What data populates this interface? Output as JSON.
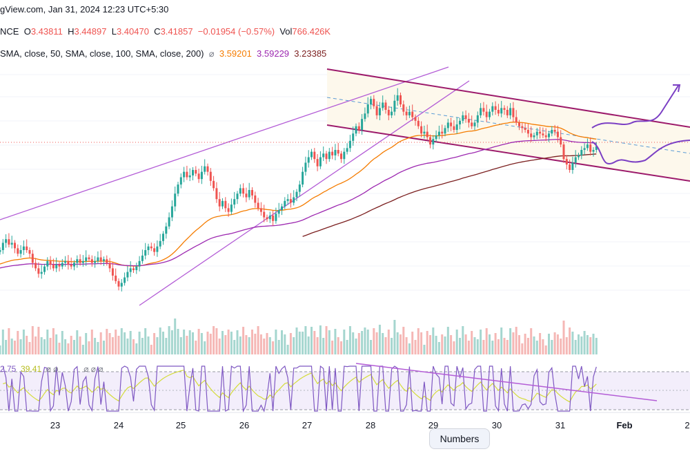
{
  "header": {
    "source": "gView.com, Jan 31, 2024 12:23 UTC+5:30",
    "exchange": "NCE",
    "o_label": "O",
    "o": "3.43811",
    "h_label": "H",
    "h": "3.44897",
    "l_label": "L",
    "l": "3.40470",
    "c_label": "C",
    "c": "3.41857",
    "change": "−0.01954 (−0.57%)",
    "vol_label": "Vol",
    "vol": "766.426K",
    "sma_text": "SMA, close, 50, SMA, close, 100, SMA, close, 200)",
    "eye_icon": "eye-off-icon",
    "sma50": "3.59201",
    "sma100": "3.59229",
    "sma200": "3.23385"
  },
  "rsi_header": {
    "rsi": "2.75",
    "rsi_ma": "39.41"
  },
  "tooltip": {
    "label": "Numbers"
  },
  "colors": {
    "up": "#26a69a",
    "down": "#ef5350",
    "sma50": "#f57c00",
    "sma100": "#9c27b0",
    "sma200": "#7b1f1f",
    "channel": "#9c1a6b",
    "trend": "#b35cd6",
    "rsi": "#7e57c2",
    "rsi_ma": "#d4dc3a",
    "projection": "#7b3fc4"
  },
  "chart_data": {
    "type": "candlestick",
    "x_ticks": [
      "23",
      "24",
      "25",
      "26",
      "27",
      "28",
      "29",
      "30",
      "31",
      "Feb",
      "2"
    ],
    "close": [
      3.22,
      3.26,
      3.28,
      3.25,
      3.26,
      3.23,
      3.2,
      3.22,
      3.24,
      3.22,
      3.2,
      3.15,
      3.12,
      3.09,
      3.1,
      3.13,
      3.16,
      3.14,
      3.12,
      3.14,
      3.13,
      3.15,
      3.16,
      3.14,
      3.13,
      3.15,
      3.17,
      3.15,
      3.16,
      3.18,
      3.17,
      3.15,
      3.16,
      3.18,
      3.16,
      3.17,
      3.15,
      3.12,
      3.08,
      3.05,
      3.02,
      3.04,
      3.07,
      3.1,
      3.12,
      3.11,
      3.13,
      3.16,
      3.19,
      3.22,
      3.24,
      3.23,
      3.21,
      3.24,
      3.27,
      3.31,
      3.35,
      3.4,
      3.46,
      3.53,
      3.58,
      3.62,
      3.65,
      3.62,
      3.63,
      3.66,
      3.64,
      3.61,
      3.65,
      3.68,
      3.65,
      3.6,
      3.56,
      3.5,
      3.46,
      3.49,
      3.45,
      3.43,
      3.47,
      3.5,
      3.53,
      3.56,
      3.53,
      3.51,
      3.55,
      3.52,
      3.48,
      3.45,
      3.43,
      3.4,
      3.39,
      3.41,
      3.38,
      3.42,
      3.44,
      3.46,
      3.49,
      3.5,
      3.48,
      3.51,
      3.54,
      3.58,
      3.65,
      3.7,
      3.73,
      3.76,
      3.72,
      3.68,
      3.73,
      3.75,
      3.72,
      3.76,
      3.74,
      3.77,
      3.75,
      3.72,
      3.76,
      3.78,
      3.82,
      3.86,
      3.9,
      3.88,
      3.94,
      3.97,
      4.02,
      4.05,
      4.01,
      3.96,
      4.0,
      4.03,
      3.99,
      3.96,
      3.98,
      4.04,
      4.07,
      4.02,
      3.98,
      3.96,
      3.98,
      3.95,
      3.93,
      3.9,
      3.86,
      3.87,
      3.84,
      3.8,
      3.83,
      3.85,
      3.87,
      3.86,
      3.89,
      3.92,
      3.9,
      3.88,
      3.91,
      3.93,
      3.96,
      3.94,
      3.92,
      3.9,
      3.92,
      3.96,
      4.0,
      3.98,
      3.95,
      3.98,
      4.01,
      3.99,
      3.97,
      4.0,
      3.99,
      3.96,
      4.0,
      3.95,
      3.92,
      3.9,
      3.89,
      3.88,
      3.86,
      3.84,
      3.85,
      3.87,
      3.86,
      3.85,
      3.84,
      3.86,
      3.88,
      3.87,
      3.84,
      3.8,
      3.72,
      3.69,
      3.66,
      3.7,
      3.73,
      3.74,
      3.77,
      3.78,
      3.8,
      3.76,
      3.77,
      3.79
    ],
    "sma50_start": 3.14,
    "sma100_start": 3.12,
    "sma200_start": 3.29,
    "rsi_range": [
      20,
      80
    ],
    "channel": {
      "upper": [
        3.99,
        4.11
      ],
      "lower": [
        3.84,
        3.92
      ]
    },
    "price_line": 3.79
  }
}
